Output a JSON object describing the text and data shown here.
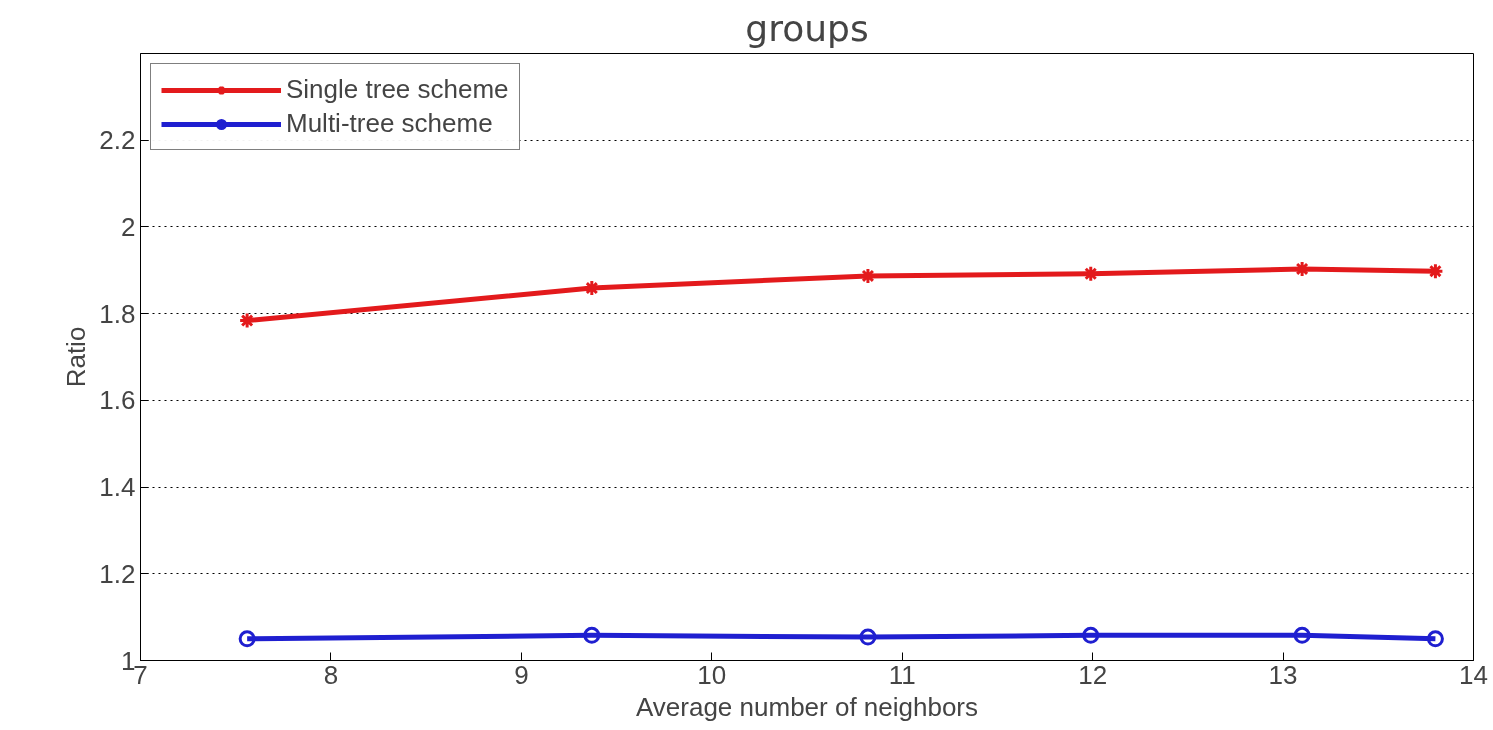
{
  "chart_data": {
    "type": "line",
    "title": "groups",
    "xlabel": "Average number of neighbors",
    "ylabel": "Ratio",
    "x": [
      7.56,
      9.37,
      10.82,
      11.99,
      13.1,
      13.8
    ],
    "series": [
      {
        "name": "Single tree scheme",
        "color": "#e31a1c",
        "marker": "cross",
        "values": [
          1.784,
          1.859,
          1.887,
          1.892,
          1.903,
          1.898
        ]
      },
      {
        "name": "Multi-tree scheme",
        "color": "#1f1fd0",
        "marker": "circle",
        "values": [
          1.05,
          1.058,
          1.054,
          1.058,
          1.058,
          1.05
        ]
      }
    ],
    "xlim": [
      7,
      14
    ],
    "ylim": [
      1,
      2.4
    ],
    "xticks": [
      7,
      8,
      9,
      10,
      11,
      12,
      13,
      14
    ],
    "yticks": [
      1,
      1.2,
      1.4,
      1.6,
      1.8,
      2,
      2.2
    ],
    "grid": "y",
    "legend": "top left",
    "line_style": "solid"
  }
}
